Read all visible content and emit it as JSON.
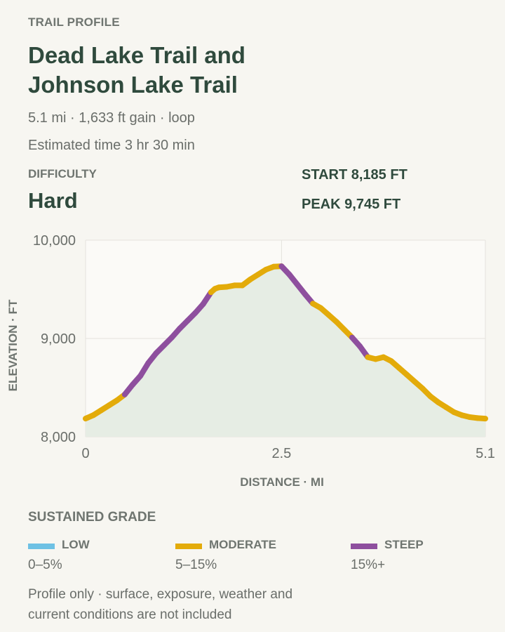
{
  "header": {
    "eyebrow": "TRAIL PROFILE",
    "title": "Dead Lake Trail and Johnson Lake Trail",
    "meta_line1": "5.1 mi · 1,633 ft gain · loop",
    "meta_line2": "Estimated time 3 hr 30 min"
  },
  "difficulty": {
    "label": "DIFFICULTY",
    "value": "Hard"
  },
  "elevation": {
    "start_label": "START",
    "start_value": "8,185 FT",
    "peak_label": "PEAK",
    "peak_value": "9,745 FT"
  },
  "colors": {
    "low": "#6ec1e4",
    "moderate": "#e3ab0a",
    "steep": "#8e4f9e",
    "fill": "#e6ede4",
    "title": "#2f4a3d"
  },
  "chart_data": {
    "type": "area",
    "xlabel": "DISTANCE · MI",
    "ylabel": "ELEVATION · FT",
    "xlim": [
      0,
      5.1
    ],
    "ylim": [
      8000,
      10000
    ],
    "x_ticks": [
      0,
      2.5,
      5.1
    ],
    "x_tick_labels": [
      "0",
      "2.5",
      "5.1"
    ],
    "y_ticks": [
      8000,
      9000,
      10000
    ],
    "y_tick_labels": [
      "8,000",
      "9,000",
      "10,000"
    ],
    "grid": true,
    "legend": "none",
    "series": [
      {
        "x": [
          0,
          0.1,
          0.2,
          0.3,
          0.4,
          0.5,
          0.6,
          0.7,
          0.8,
          0.9,
          1.0,
          1.1,
          1.2,
          1.3,
          1.4,
          1.5,
          1.6,
          1.65,
          1.7,
          1.8,
          1.9,
          2.0,
          2.1,
          2.2,
          2.3,
          2.4,
          2.5,
          2.6,
          2.7,
          2.8,
          2.9,
          3.0,
          3.1,
          3.2,
          3.3,
          3.4,
          3.5,
          3.6,
          3.7,
          3.8,
          3.9,
          4.0,
          4.1,
          4.2,
          4.3,
          4.4,
          4.5,
          4.6,
          4.7,
          4.8,
          4.9,
          5.0,
          5.1
        ],
        "y": [
          8185,
          8220,
          8270,
          8320,
          8370,
          8430,
          8530,
          8620,
          8750,
          8850,
          8930,
          9010,
          9100,
          9180,
          9260,
          9350,
          9470,
          9505,
          9520,
          9525,
          9540,
          9540,
          9600,
          9650,
          9700,
          9730,
          9735,
          9650,
          9550,
          9450,
          9355,
          9310,
          9240,
          9170,
          9090,
          9010,
          8920,
          8810,
          8790,
          8810,
          8770,
          8700,
          8630,
          8560,
          8490,
          8410,
          8350,
          8300,
          8250,
          8220,
          8200,
          8190,
          8185
        ],
        "grade": [
          "moderate",
          "moderate",
          "moderate",
          "moderate",
          "moderate",
          "steep",
          "steep",
          "steep",
          "steep",
          "steep",
          "steep",
          "steep",
          "steep",
          "steep",
          "steep",
          "steep",
          "moderate",
          "moderate",
          "moderate",
          "moderate",
          "moderate",
          "moderate",
          "moderate",
          "moderate",
          "moderate",
          "moderate",
          "steep",
          "steep",
          "steep",
          "steep",
          "moderate",
          "moderate",
          "moderate",
          "moderate",
          "moderate",
          "steep",
          "steep",
          "moderate",
          "moderate",
          "moderate",
          "moderate",
          "moderate",
          "moderate",
          "moderate",
          "moderate",
          "moderate",
          "moderate",
          "moderate",
          "moderate",
          "moderate",
          "moderate",
          "moderate"
        ]
      }
    ]
  },
  "legend": {
    "title": "SUSTAINED GRADE",
    "items": [
      {
        "key": "low",
        "name": "LOW",
        "range": "0–5%"
      },
      {
        "key": "moderate",
        "name": "MODERATE",
        "range": "5–15%"
      },
      {
        "key": "steep",
        "name": "STEEP",
        "range": "15%+"
      }
    ]
  },
  "footnote": "Profile only · surface, exposure, weather and current conditions are not included"
}
